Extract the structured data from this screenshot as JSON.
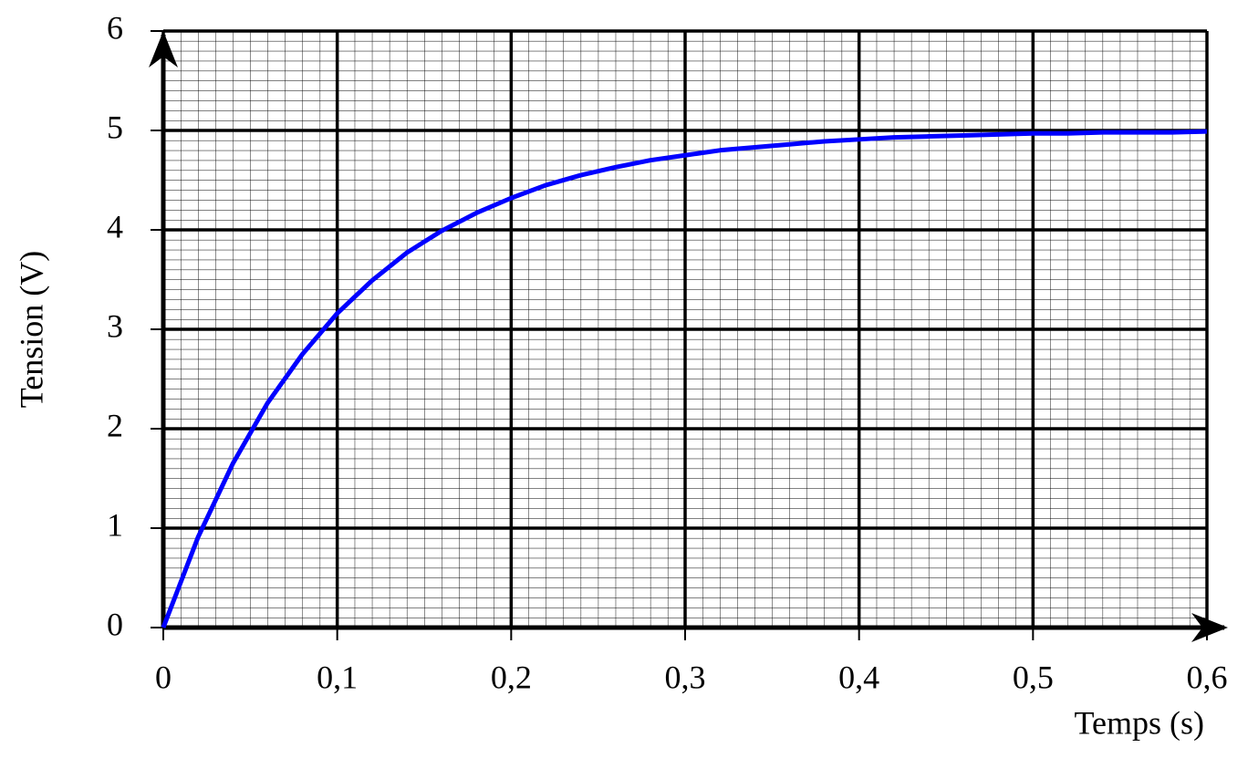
{
  "chart_data": {
    "type": "line",
    "x_label": "Temps (s)",
    "y_label": "Tension (V)",
    "x": [
      0,
      0.02,
      0.04,
      0.06,
      0.08,
      0.1,
      0.12,
      0.14,
      0.16,
      0.18,
      0.2,
      0.22,
      0.24,
      0.26,
      0.28,
      0.3,
      0.32,
      0.34,
      0.36,
      0.38,
      0.4,
      0.42,
      0.44,
      0.46,
      0.48,
      0.5,
      0.52,
      0.54,
      0.56,
      0.58,
      0.6
    ],
    "values": [
      0,
      0.91,
      1.65,
      2.26,
      2.75,
      3.16,
      3.49,
      3.77,
      3.99,
      4.17,
      4.32,
      4.45,
      4.55,
      4.63,
      4.7,
      4.75,
      4.8,
      4.83,
      4.86,
      4.89,
      4.91,
      4.93,
      4.94,
      4.95,
      4.96,
      4.97,
      4.97,
      4.98,
      4.98,
      4.98,
      4.99
    ],
    "color": "#0000ff",
    "xlim": [
      0,
      0.6
    ],
    "ylim": [
      0,
      6
    ],
    "xticks": [
      0,
      {
        "value": 0.1,
        "label": "0,1"
      },
      {
        "value": 0.2,
        "label": "0,2"
      },
      {
        "value": 0.3,
        "label": "0,3"
      },
      {
        "value": 0.4,
        "label": "0,4"
      },
      {
        "value": 0.5,
        "label": "0,5"
      },
      {
        "value": 0.6,
        "label": "0,6"
      }
    ],
    "yticks": [
      0,
      1,
      2,
      3,
      4,
      5,
      6
    ],
    "grid": true
  }
}
